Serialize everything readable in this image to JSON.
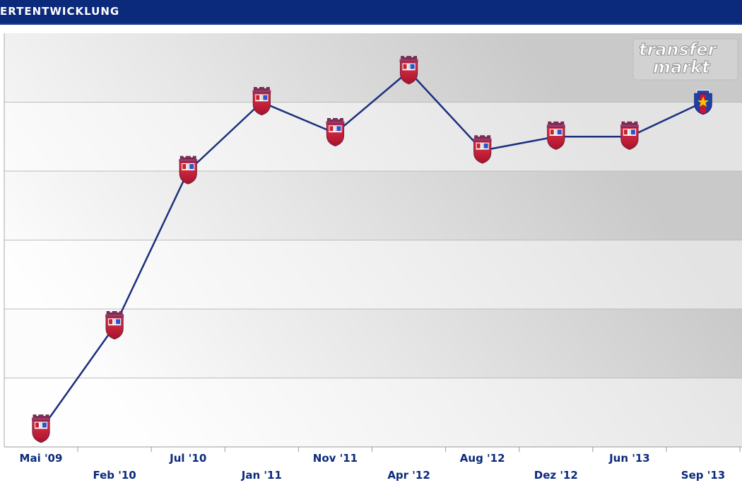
{
  "header": {
    "title": "ERTENTWICKLUNG"
  },
  "watermark": {
    "line1": "transfer",
    "line2": "markt"
  },
  "colors": {
    "header": "#0b2a7c",
    "line": "#1b2f7e",
    "label": "#0b2a7c"
  },
  "chart_data": {
    "type": "line",
    "title": "",
    "xlabel": "",
    "ylabel": "",
    "y_tick_labels_visible": false,
    "grid": true,
    "x_tick_labels": [
      "Mai '09",
      "Feb '10",
      "Jul '10",
      "Jan '11",
      "Nov '11",
      "Apr '12",
      "Aug '12",
      "Dez '12",
      "Jun '13",
      "Sep '13"
    ],
    "points": [
      {
        "label": "Mai '09",
        "y": 0.25,
        "icon": "club-crest-icon"
      },
      {
        "label": "Feb '10",
        "y": 1.75,
        "icon": "club-crest-icon"
      },
      {
        "label": "Jul '10",
        "y": 4.0,
        "icon": "club-crest-icon"
      },
      {
        "label": "Jan '11",
        "y": 5.0,
        "icon": "club-crest-icon"
      },
      {
        "label": "Nov '11",
        "y": 4.55,
        "icon": "club-crest-icon"
      },
      {
        "label": "Apr '12",
        "y": 5.45,
        "icon": "club-crest-icon"
      },
      {
        "label": "Aug '12",
        "y": 4.3,
        "icon": "club-crest-icon"
      },
      {
        "label": "Dez '12",
        "y": 4.5,
        "icon": "club-crest-icon"
      },
      {
        "label": "Jun '13",
        "y": 4.5,
        "icon": "club-crest-icon"
      },
      {
        "label": "Sep '13",
        "y": 5.0,
        "icon": "steaua-crest-icon"
      }
    ],
    "ylim": [
      0,
      6
    ]
  }
}
